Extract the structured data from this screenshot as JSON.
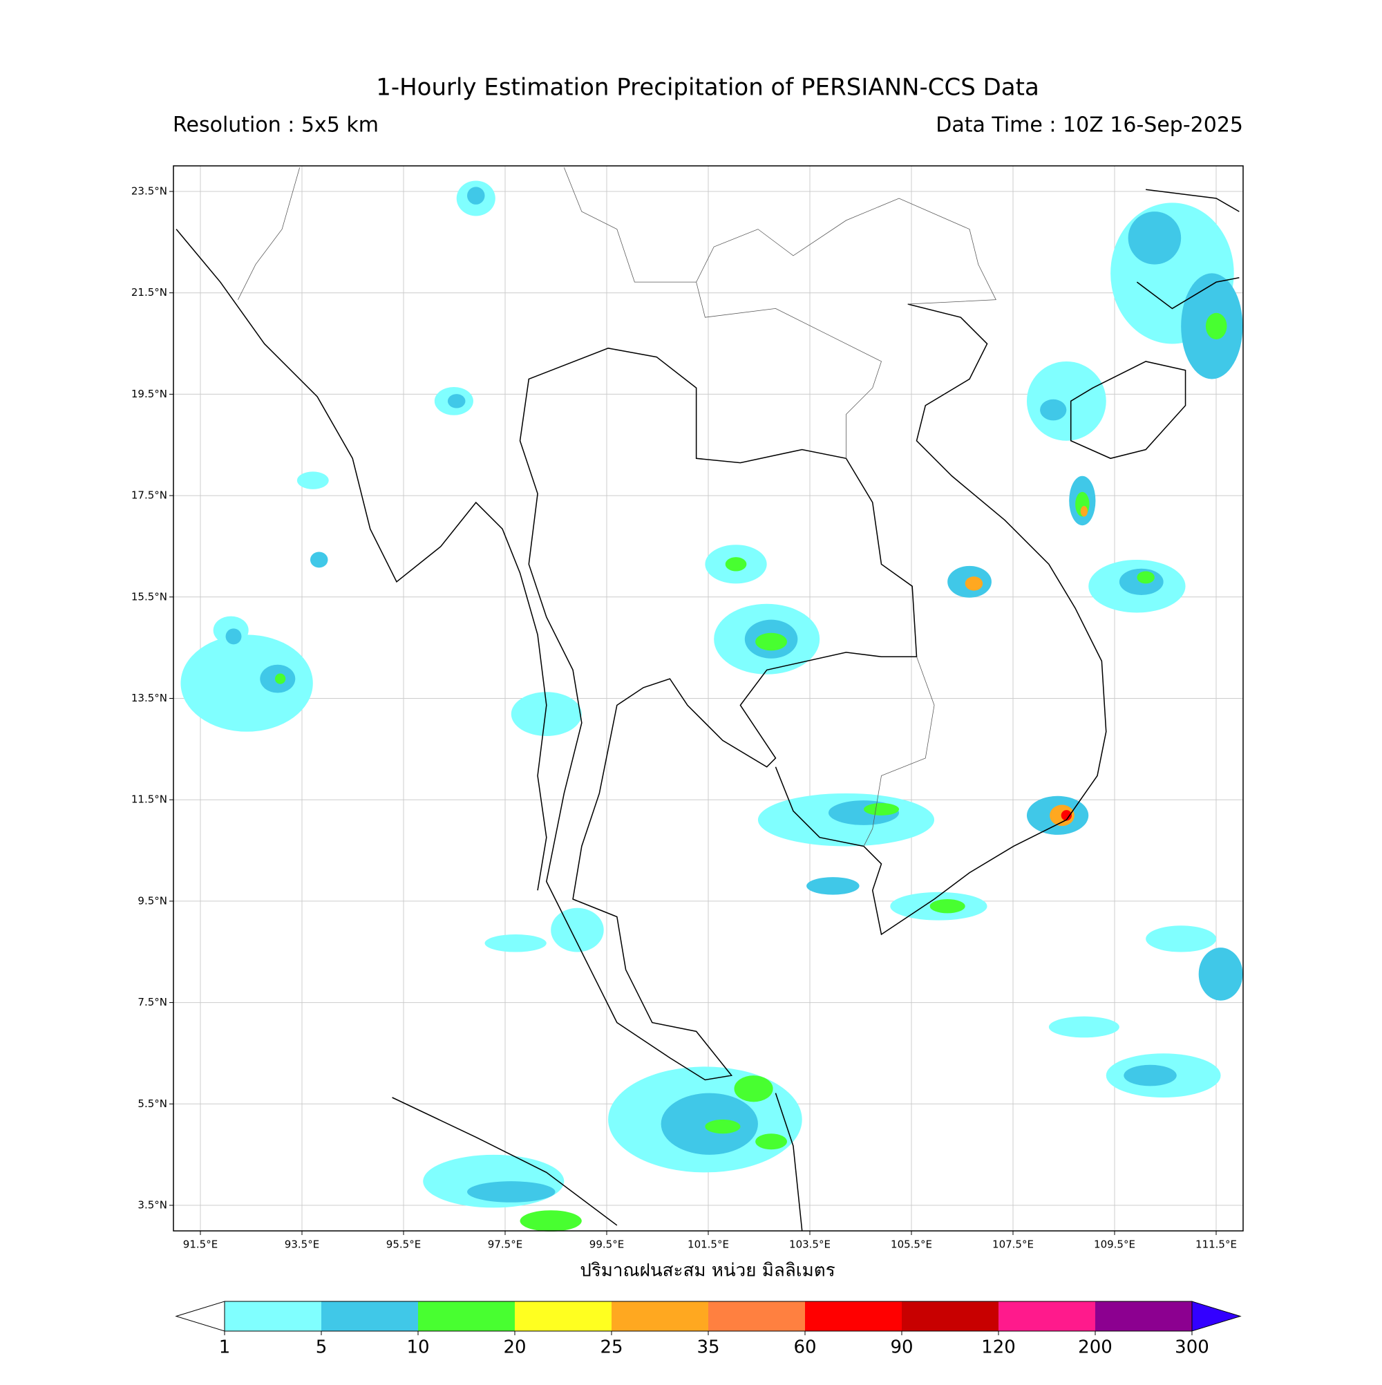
{
  "header": {
    "title": "1-Hourly Estimation Precipitation of PERSIANN-CCS Data",
    "resolution": "Resolution : 5x5 km",
    "data_time": "Data Time : 10Z 16-Sep-2025"
  },
  "map": {
    "lat_labels": [
      "23.5°N",
      "21.5°N",
      "19.5°N",
      "17.5°N",
      "15.5°N",
      "13.5°N",
      "11.5°N",
      "9.5°N",
      "7.5°N",
      "5.5°N",
      "3.5°N"
    ],
    "lon_labels": [
      "91.5°E",
      "93.5°E",
      "95.5°E",
      "97.5°E",
      "99.5°E",
      "101.5°E",
      "103.5°E",
      "105.5°E",
      "107.5°E",
      "109.5°E",
      "111.5°E"
    ],
    "xlabel": "ปริมาณฝนสะสม หน่วย มิลลิเมตร"
  },
  "colorbar": {
    "levels": [
      1,
      5,
      10,
      20,
      25,
      35,
      60,
      90,
      120,
      200,
      300
    ],
    "colors": [
      "#80ffff",
      "#40c8e8",
      "#48ff30",
      "#ffff20",
      "#ffa820",
      "#ff8040",
      "#ff0000",
      "#c80000",
      "#ff1a8c",
      "#8c0090"
    ],
    "under_color": "#ffffff",
    "over_color": "#3300ff"
  }
}
